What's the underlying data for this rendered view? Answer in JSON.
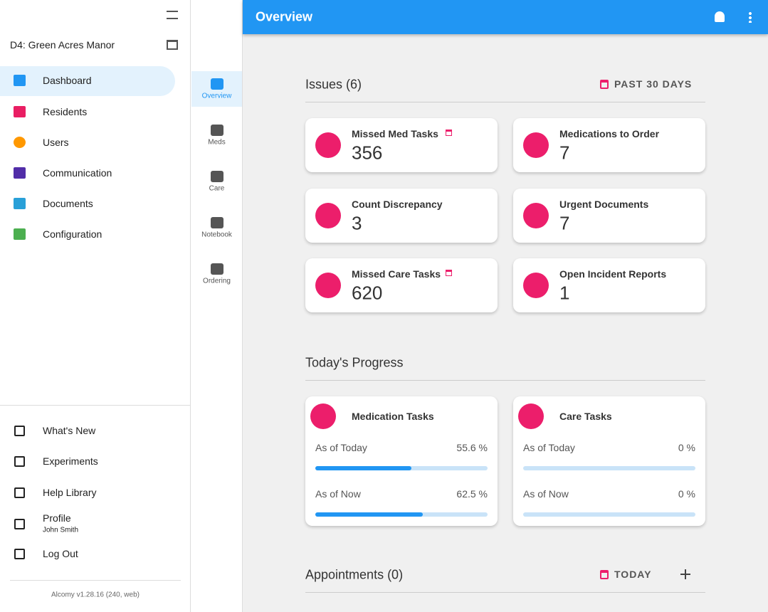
{
  "sidebar": {
    "facility": "D4: Green Acres Manor",
    "nav": [
      {
        "label": "Dashboard",
        "color": "#2196f3"
      },
      {
        "label": "Residents",
        "color": "#e91e63"
      },
      {
        "label": "Users",
        "color": "#ff9800"
      },
      {
        "label": "Communication",
        "color": "#512da8"
      },
      {
        "label": "Documents",
        "color": "#29a0d8"
      },
      {
        "label": "Configuration",
        "color": "#4caf50"
      }
    ],
    "footer_nav": [
      {
        "label": "What's New"
      },
      {
        "label": "Experiments"
      },
      {
        "label": "Help Library"
      },
      {
        "label": "Profile",
        "sub": "John Smith"
      },
      {
        "label": "Log Out"
      }
    ],
    "version": "Alcomy v1.28.16 (240, web)"
  },
  "rail": [
    "Overview",
    "Meds",
    "Care",
    "Notebook",
    "Ordering"
  ],
  "header": {
    "title": "Overview"
  },
  "issues": {
    "title": "Issues (6)",
    "range": "PAST 30 DAYS",
    "cards": [
      {
        "label": "Missed Med Tasks",
        "count": 356
      },
      {
        "label": "Medications to Order",
        "count": 7
      },
      {
        "label": "Count Discrepancy",
        "count": 3
      },
      {
        "label": "Urgent Documents",
        "count": 7
      },
      {
        "label": "Missed Care Tasks",
        "count": 620
      },
      {
        "label": "Open Incident Reports",
        "count": 1
      }
    ]
  },
  "progress": {
    "title": "Today's Progress",
    "cards": [
      {
        "label": "Medication Tasks",
        "rows": [
          {
            "label": "As of Today",
            "value": 55.6,
            "value_label": "55.6 %"
          },
          {
            "label": "As of Now",
            "value": 62.5,
            "value_label": "62.5 %"
          }
        ]
      },
      {
        "label": "Care Tasks",
        "rows": [
          {
            "label": "As of Today",
            "value": 0,
            "value_label": "0 %"
          },
          {
            "label": "As of Now",
            "value": 0,
            "value_label": "0 %"
          }
        ]
      }
    ]
  },
  "appointments": {
    "title": "Appointments (0)",
    "range": "TODAY"
  }
}
